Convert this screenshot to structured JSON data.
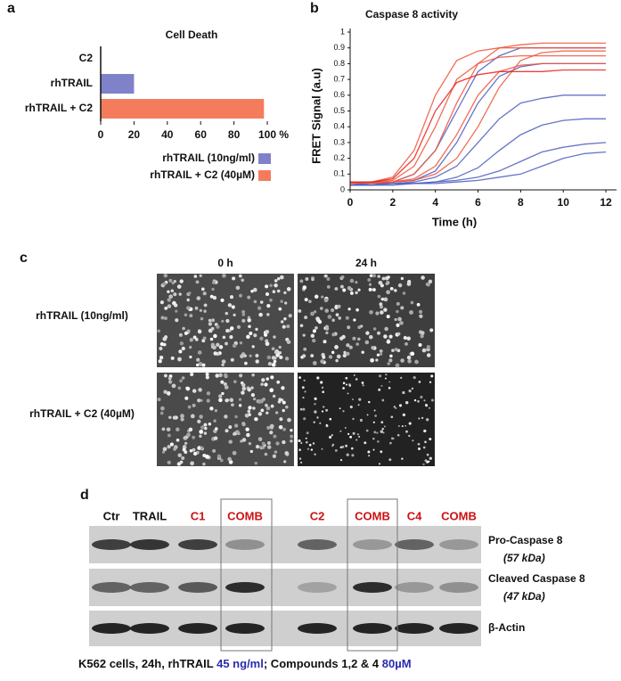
{
  "chart_data": [
    {
      "panel": "a",
      "type": "barh",
      "title": "Cell Death",
      "categories": [
        "C2",
        "rhTRAIL",
        "rhTRAIL + C2"
      ],
      "series": [
        {
          "name": "rhTRAIL (10ng/ml)",
          "color": "#7f82c9",
          "values": [
            null,
            20,
            null
          ]
        },
        {
          "name": "rhTRAIL + C2 (40µM)",
          "color": "#f47c5c",
          "values": [
            null,
            null,
            98
          ]
        }
      ],
      "xlim": [
        0,
        100
      ],
      "xticks": [
        0,
        20,
        40,
        60,
        80,
        {
          "value": 100,
          "label": "100 %"
        }
      ]
    },
    {
      "panel": "b",
      "type": "line",
      "title": "Caspase 8 activity",
      "x_label": "Time (h)",
      "y_label": "FRET Signal (a.u)",
      "x": [
        0,
        1,
        2,
        3,
        4,
        5,
        6,
        7,
        8,
        9,
        10,
        11,
        12
      ],
      "series": [
        {
          "color": "#4a5cc0",
          "values": [
            0.05,
            0.04,
            0.05,
            0.1,
            0.25,
            0.5,
            0.75,
            0.85,
            0.9,
            0.9,
            0.9,
            0.9,
            0.9
          ]
        },
        {
          "color": "#4a5cc0",
          "values": [
            0.04,
            0.04,
            0.04,
            0.05,
            0.08,
            0.15,
            0.3,
            0.45,
            0.55,
            0.58,
            0.6,
            0.6,
            0.6
          ]
        },
        {
          "color": "#4a5cc0",
          "values": [
            0.03,
            0.04,
            0.04,
            0.04,
            0.05,
            0.08,
            0.14,
            0.25,
            0.35,
            0.41,
            0.44,
            0.45,
            0.45
          ]
        },
        {
          "color": "#4a5cc0",
          "values": [
            0.03,
            0.03,
            0.04,
            0.04,
            0.05,
            0.06,
            0.08,
            0.12,
            0.18,
            0.24,
            0.27,
            0.29,
            0.3
          ]
        },
        {
          "color": "#4a5cc0",
          "values": [
            0.03,
            0.03,
            0.03,
            0.04,
            0.04,
            0.05,
            0.06,
            0.08,
            0.1,
            0.15,
            0.2,
            0.23,
            0.24
          ]
        },
        {
          "color": "#4a5cc0",
          "values": [
            0.04,
            0.04,
            0.05,
            0.06,
            0.12,
            0.3,
            0.55,
            0.72,
            0.78,
            0.8,
            0.8,
            0.8,
            0.8
          ]
        },
        {
          "color": "#f0533a",
          "values": [
            0.05,
            0.05,
            0.08,
            0.25,
            0.6,
            0.82,
            0.88,
            0.9,
            0.9,
            0.9,
            0.9,
            0.9,
            0.9
          ]
        },
        {
          "color": "#f0533a",
          "values": [
            0.04,
            0.05,
            0.06,
            0.15,
            0.4,
            0.7,
            0.8,
            0.84,
            0.85,
            0.85,
            0.85,
            0.85,
            0.85
          ]
        },
        {
          "color": "#f0533a",
          "values": [
            0.05,
            0.04,
            0.05,
            0.1,
            0.25,
            0.55,
            0.8,
            0.9,
            0.92,
            0.93,
            0.93,
            0.93,
            0.93
          ]
        },
        {
          "color": "#f0533a",
          "values": [
            0.04,
            0.05,
            0.05,
            0.07,
            0.15,
            0.35,
            0.6,
            0.75,
            0.79,
            0.8,
            0.8,
            0.8,
            0.8
          ]
        },
        {
          "color": "#f0533a",
          "values": [
            0.05,
            0.05,
            0.05,
            0.06,
            0.1,
            0.2,
            0.4,
            0.65,
            0.82,
            0.87,
            0.88,
            0.88,
            0.88
          ]
        },
        {
          "color": "#e8201a",
          "values": [
            0.05,
            0.05,
            0.07,
            0.2,
            0.5,
            0.68,
            0.73,
            0.75,
            0.75,
            0.75,
            0.76,
            0.76,
            0.76
          ]
        }
      ],
      "xlim": [
        0,
        12.5
      ],
      "xticks": [
        0,
        2,
        4,
        6,
        8,
        10,
        12
      ],
      "ylim": [
        0,
        1
      ],
      "yticks": [
        0,
        0.1,
        0.2,
        0.3,
        0.4,
        0.5,
        0.6,
        0.7,
        0.8,
        0.9,
        1
      ]
    }
  ],
  "panel_c": {
    "letter": "c",
    "columns": [
      "0 h",
      "24 h"
    ],
    "rows": [
      "rhTRAIL (10ng/ml)",
      "rhTRAIL + C2 (40µM)"
    ]
  },
  "panel_d": {
    "letter": "d",
    "lanes": [
      "Ctr",
      "TRAIL",
      "C1",
      "COMB",
      "C2",
      "COMB",
      "C4",
      "COMB"
    ],
    "lane_colors": [
      "#111111",
      "#111111",
      "#cc1111",
      "#cc1111",
      "#cc1111",
      "#cc1111",
      "#cc1111",
      "#cc1111"
    ],
    "rows": [
      [
        "Pro-Caspase 8",
        "(57 kDa)"
      ],
      [
        "Cleaved Caspase 8",
        "(47 kDa)"
      ],
      [
        "β-Actin"
      ]
    ],
    "caption": [
      "K562 cells, 24h, rhTRAIL ",
      "45 ng/ml",
      "; Compounds 1,2 & 4 ",
      "80µM"
    ]
  }
}
